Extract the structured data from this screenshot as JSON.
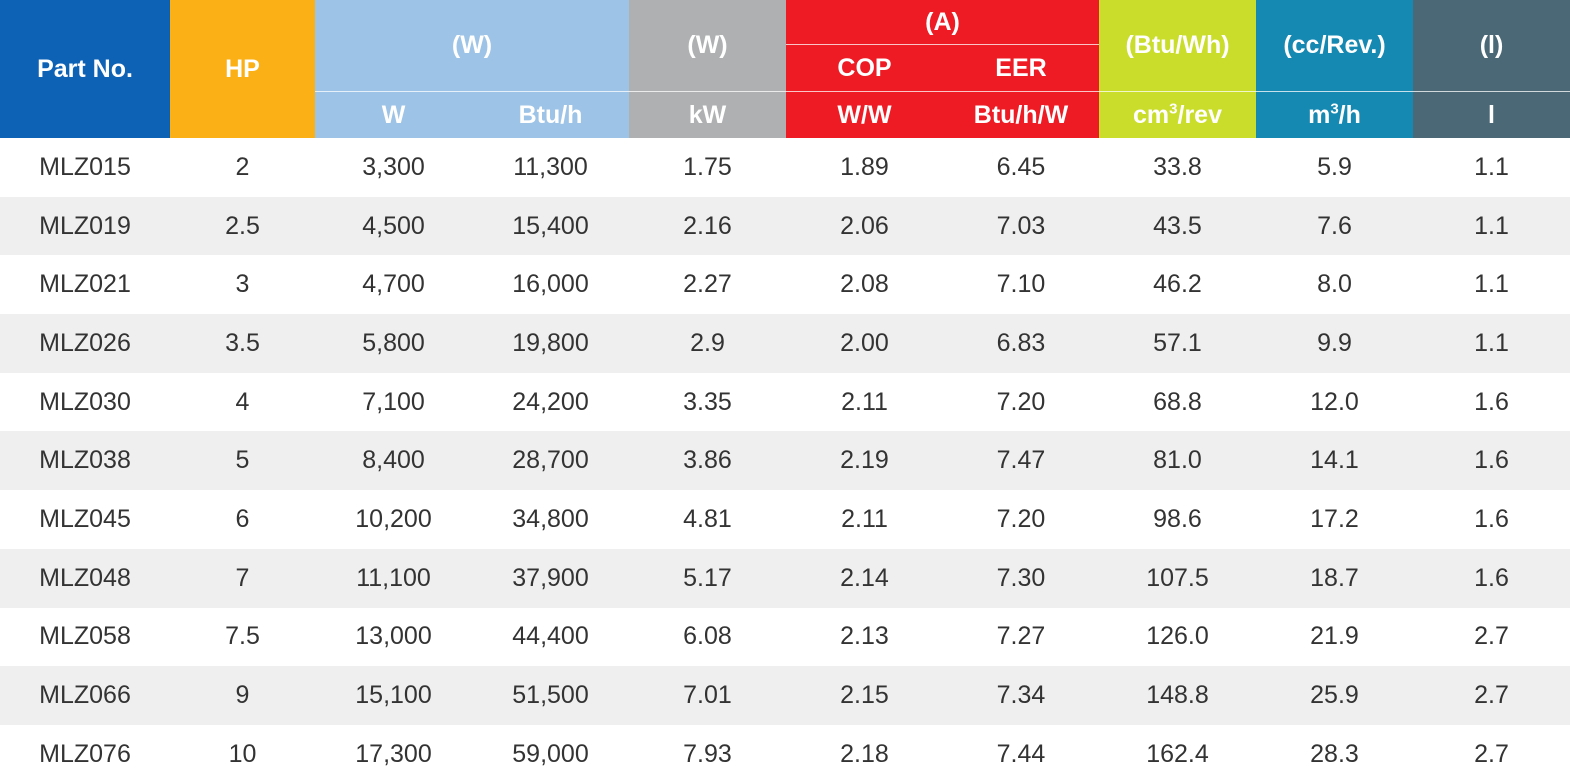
{
  "header": {
    "part_no": "Part No.",
    "hp": "HP",
    "capacity_group": "(W)",
    "capacity_w": "W",
    "capacity_btuh": "Btu/h",
    "power_group": "(W)",
    "power_kw": "kW",
    "efficiency_group": "(A)",
    "cop_label": "COP",
    "cop_unit": "W/W",
    "eer_label": "EER",
    "eer_unit": "Btu/h/W",
    "sound_group": "(Btu/Wh)",
    "sound_unit_base": "cm",
    "sound_unit_sup": "3",
    "sound_unit_tail": "/rev",
    "disp_group": "(cc/Rev.)",
    "disp_unit_base": "m",
    "disp_unit_sup": "3",
    "disp_unit_tail": "/h",
    "oil_group": "(l)",
    "oil_unit": "l"
  },
  "colors": {
    "part_no": "#0d62b5",
    "hp": "#fbb016",
    "capacity": "#9dc3e6",
    "power": "#aeb0b2",
    "efficiency": "#ee1b24",
    "sound": "#c9dd2a",
    "displacement": "#1689b3",
    "oil": "#4b6877"
  },
  "rows": [
    [
      "MLZ015",
      "2",
      "3,300",
      "11,300",
      "1.75",
      "1.89",
      "6.45",
      "33.8",
      "5.9",
      "1.1"
    ],
    [
      "MLZ019",
      "2.5",
      "4,500",
      "15,400",
      "2.16",
      "2.06",
      "7.03",
      "43.5",
      "7.6",
      "1.1"
    ],
    [
      "MLZ021",
      "3",
      "4,700",
      "16,000",
      "2.27",
      "2.08",
      "7.10",
      "46.2",
      "8.0",
      "1.1"
    ],
    [
      "MLZ026",
      "3.5",
      "5,800",
      "19,800",
      "2.9",
      "2.00",
      "6.83",
      "57.1",
      "9.9",
      "1.1"
    ],
    [
      "MLZ030",
      "4",
      "7,100",
      "24,200",
      "3.35",
      "2.11",
      "7.20",
      "68.8",
      "12.0",
      "1.6"
    ],
    [
      "MLZ038",
      "5",
      "8,400",
      "28,700",
      "3.86",
      "2.19",
      "7.47",
      "81.0",
      "14.1",
      "1.6"
    ],
    [
      "MLZ045",
      "6",
      "10,200",
      "34,800",
      "4.81",
      "2.11",
      "7.20",
      "98.6",
      "17.2",
      "1.6"
    ],
    [
      "MLZ048",
      "7",
      "11,100",
      "37,900",
      "5.17",
      "2.14",
      "7.30",
      "107.5",
      "18.7",
      "1.6"
    ],
    [
      "MLZ058",
      "7.5",
      "13,000",
      "44,400",
      "6.08",
      "2.13",
      "7.27",
      "126.0",
      "21.9",
      "2.7"
    ],
    [
      "MLZ066",
      "9",
      "15,100",
      "51,500",
      "7.01",
      "2.15",
      "7.34",
      "148.8",
      "25.9",
      "2.7"
    ],
    [
      "MLZ076",
      "10",
      "17,300",
      "59,000",
      "7.93",
      "2.18",
      "7.44",
      "162.4",
      "28.3",
      "2.7"
    ]
  ]
}
